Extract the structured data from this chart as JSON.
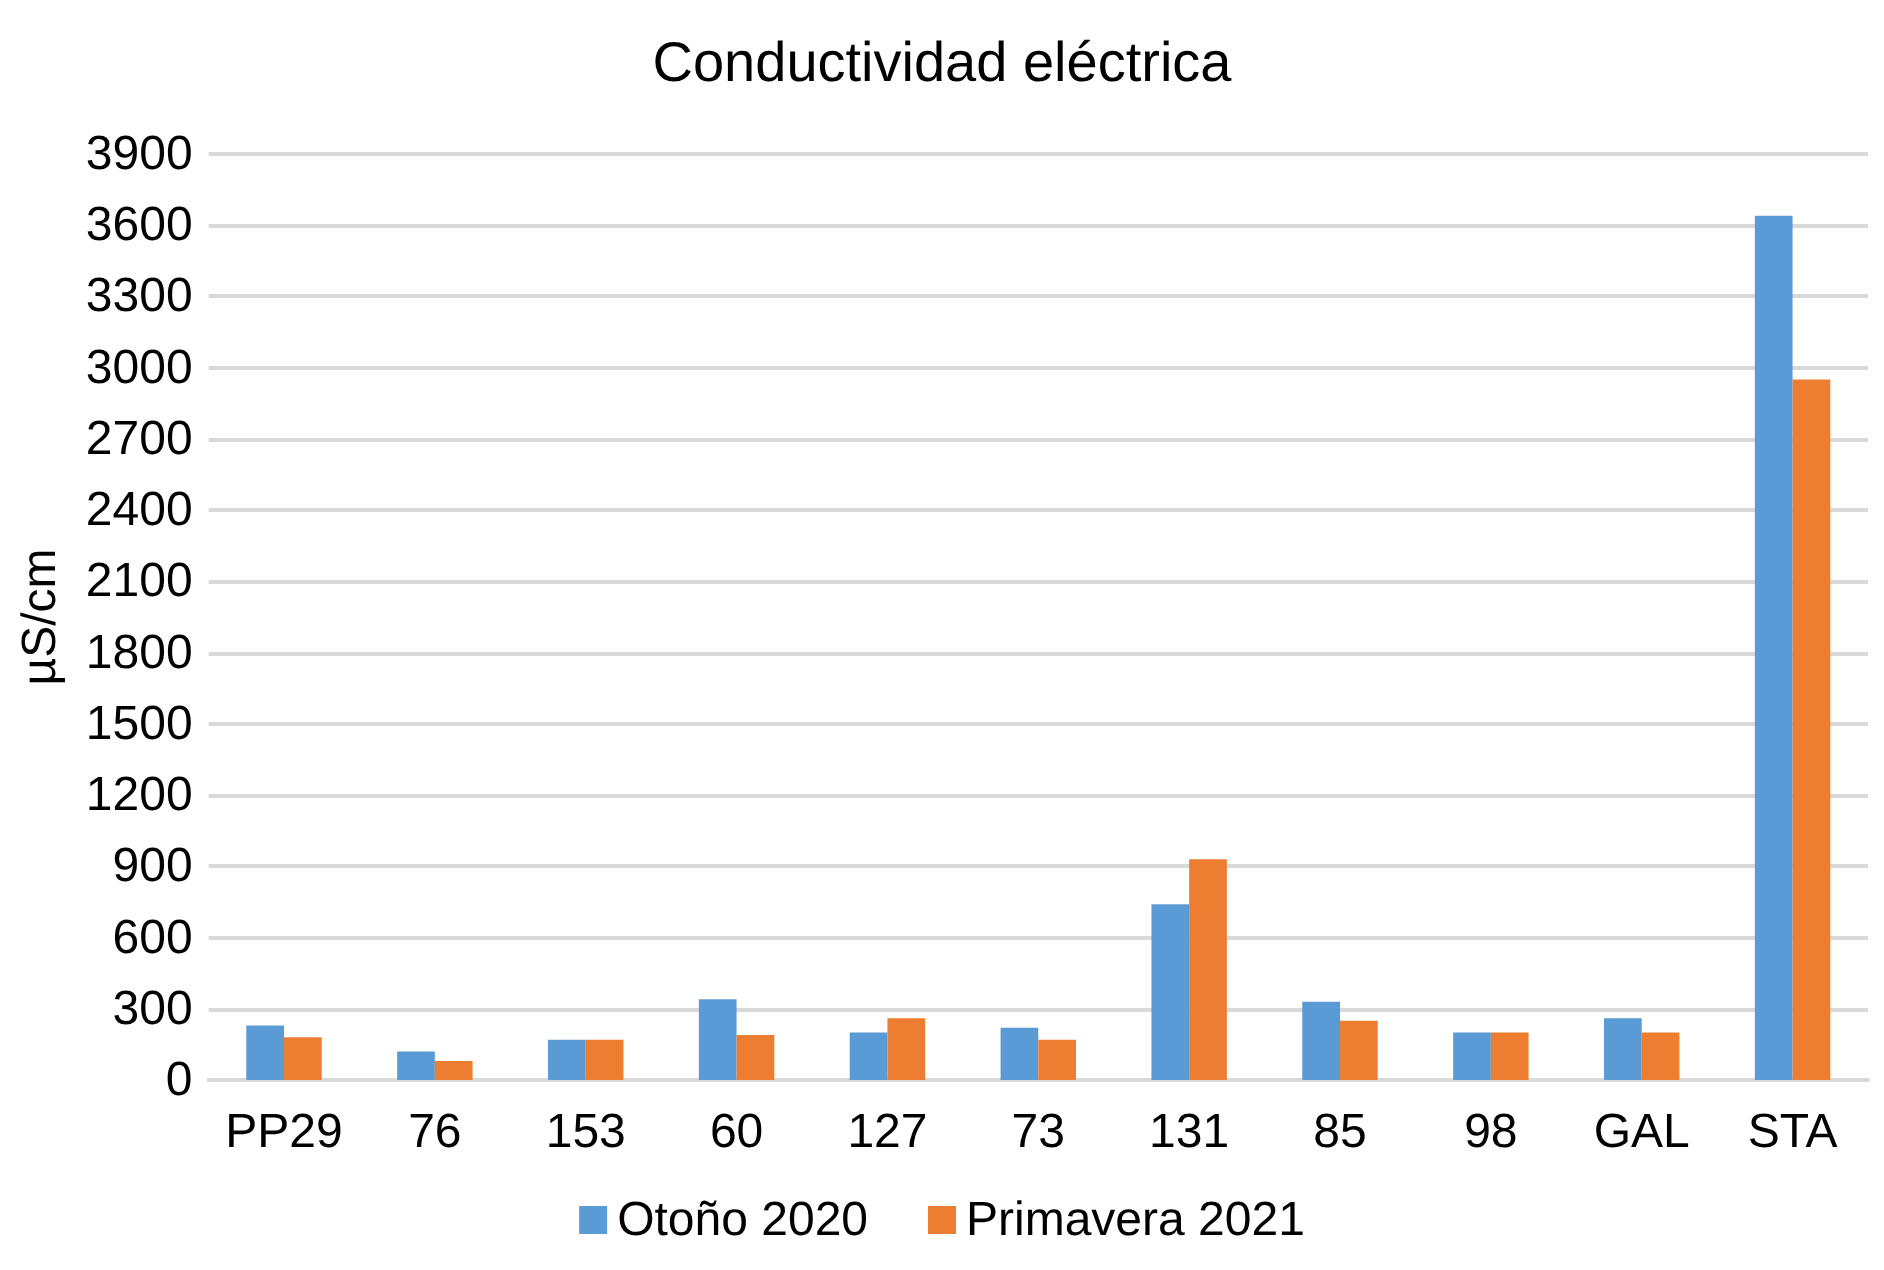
{
  "chart_data": {
    "type": "bar",
    "title": "Conductividad eléctrica",
    "ylabel": "µS/cm",
    "categories": [
      "PP29",
      "76",
      "153",
      "60",
      "127",
      "73",
      "131",
      "85",
      "98",
      "GAL",
      "STA"
    ],
    "series": [
      {
        "name": "Otoño 2020",
        "color": "#5b9bd5",
        "values": [
          230,
          120,
          170,
          340,
          200,
          220,
          740,
          330,
          200,
          260,
          3640
        ]
      },
      {
        "name": "Primavera 2021",
        "color": "#ed7d31",
        "values": [
          180,
          80,
          170,
          190,
          260,
          170,
          930,
          250,
          200,
          200,
          2950
        ]
      }
    ],
    "ylim": [
      0,
      3900
    ],
    "yticks": [
      0,
      300,
      600,
      900,
      1200,
      1500,
      1800,
      2100,
      2400,
      2700,
      3000,
      3300,
      3600,
      3900
    ],
    "grid": "y",
    "legend": "bottom"
  }
}
